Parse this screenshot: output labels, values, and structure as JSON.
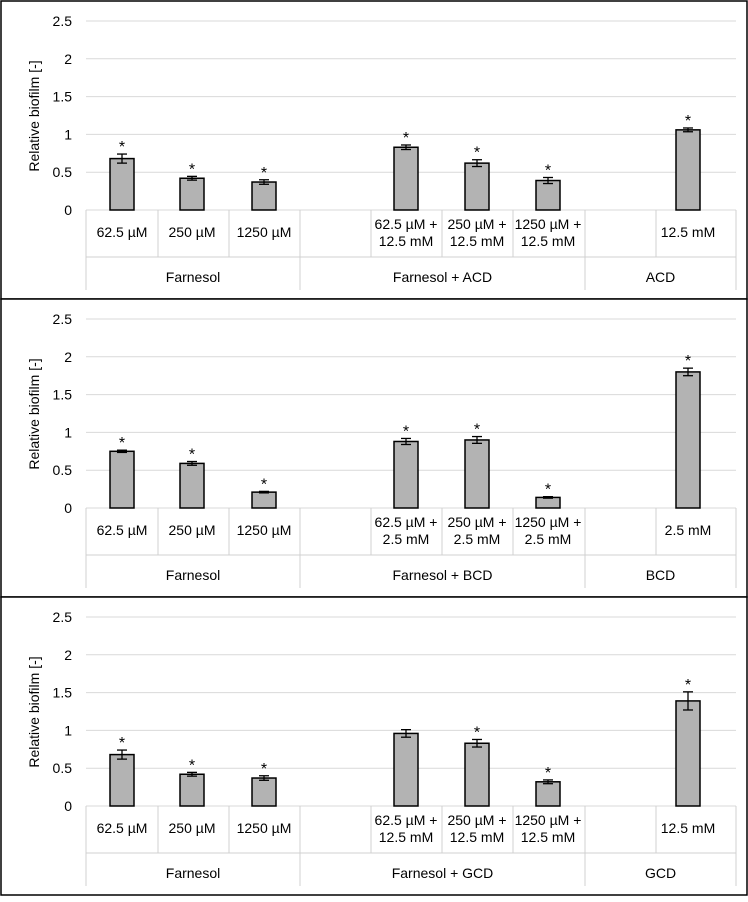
{
  "chart_data": [
    {
      "type": "bar",
      "ylabel": "Relative biofilm [-]",
      "ylim": [
        0,
        2.5
      ],
      "yticks": [
        "0",
        "0.5",
        "1",
        "1.5",
        "2",
        "2.5"
      ],
      "grid": true,
      "bars": [
        {
          "label": [
            "62.5 µM"
          ],
          "value": 0.68,
          "error": 0.06,
          "star": true
        },
        {
          "label": [
            "250 µM"
          ],
          "value": 0.42,
          "error": 0.025,
          "star": true
        },
        {
          "label": [
            "1250 µM"
          ],
          "value": 0.37,
          "error": 0.03,
          "star": true
        },
        {
          "label": [
            "62.5 µM +",
            "12.5 mM"
          ],
          "value": 0.83,
          "error": 0.03,
          "star": true
        },
        {
          "label": [
            "250 µM +",
            "12.5 mM"
          ],
          "value": 0.62,
          "error": 0.045,
          "star": true
        },
        {
          "label": [
            "1250 µM +",
            "12.5 mM"
          ],
          "value": 0.39,
          "error": 0.04,
          "star": true
        },
        {
          "label": [
            "12.5 mM"
          ],
          "value": 1.06,
          "error": 0.025,
          "star": true
        }
      ],
      "groups": [
        "Farnesol",
        "Farnesol + ACD",
        "ACD"
      ],
      "star_symbol": "*"
    },
    {
      "type": "bar",
      "ylabel": "Relative biofilm [-]",
      "ylim": [
        0,
        2.5
      ],
      "yticks": [
        "0",
        "0.5",
        "1",
        "1.5",
        "2",
        "2.5"
      ],
      "grid": true,
      "bars": [
        {
          "label": [
            "62.5 µM"
          ],
          "value": 0.75,
          "error": 0.015,
          "star": true
        },
        {
          "label": [
            "250 µM"
          ],
          "value": 0.59,
          "error": 0.025,
          "star": true
        },
        {
          "label": [
            "1250 µM"
          ],
          "value": 0.21,
          "error": 0.01,
          "star": true
        },
        {
          "label": [
            "62.5 µM +",
            "2.5 mM"
          ],
          "value": 0.88,
          "error": 0.04,
          "star": true
        },
        {
          "label": [
            "250 µM +",
            "2.5 mM"
          ],
          "value": 0.9,
          "error": 0.045,
          "star": true
        },
        {
          "label": [
            "1250 µM +",
            "2.5 mM"
          ],
          "value": 0.14,
          "error": 0.01,
          "star": true
        },
        {
          "label": [
            "2.5 mM"
          ],
          "value": 1.8,
          "error": 0.05,
          "star": true
        }
      ],
      "groups": [
        "Farnesol",
        "Farnesol + BCD",
        "BCD"
      ],
      "star_symbol": "*"
    },
    {
      "type": "bar",
      "ylabel": "Relative biofilm [-]",
      "ylim": [
        0,
        2.5
      ],
      "yticks": [
        "0",
        "0.5",
        "1",
        "1.5",
        "2",
        "2.5"
      ],
      "grid": true,
      "bars": [
        {
          "label": [
            "62.5 µM"
          ],
          "value": 0.68,
          "error": 0.06,
          "star": true
        },
        {
          "label": [
            "250 µM"
          ],
          "value": 0.42,
          "error": 0.025,
          "star": true
        },
        {
          "label": [
            "1250 µM"
          ],
          "value": 0.37,
          "error": 0.03,
          "star": true
        },
        {
          "label": [
            "62.5 µM +",
            "12.5 mM"
          ],
          "value": 0.96,
          "error": 0.05,
          "star": false
        },
        {
          "label": [
            "250 µM +",
            "12.5 mM"
          ],
          "value": 0.83,
          "error": 0.05,
          "star": true
        },
        {
          "label": [
            "1250 µM +",
            "12.5 mM"
          ],
          "value": 0.32,
          "error": 0.025,
          "star": true
        },
        {
          "label": [
            "12.5 mM"
          ],
          "value": 1.39,
          "error": 0.12,
          "star": true
        }
      ],
      "groups": [
        "Farnesol",
        "Farnesol + GCD",
        "GCD"
      ],
      "star_symbol": "*"
    }
  ]
}
